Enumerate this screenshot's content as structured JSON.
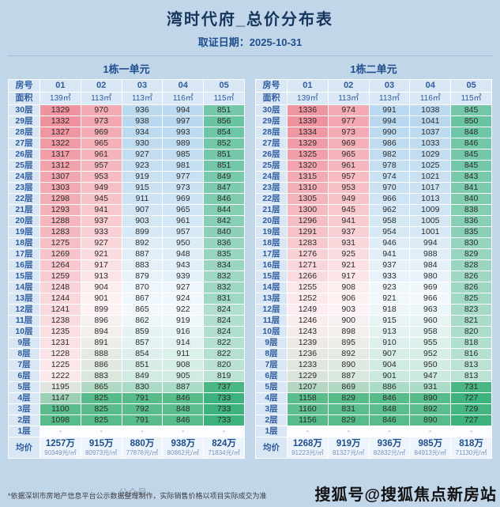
{
  "page": {
    "title": "湾时代府_总价分布表",
    "subtitle": "取证日期：2025-10-31",
    "footnote": "*依据深圳市房地产信息平台公示数据整理制作，实际销售价格以项目实际成交为准",
    "watermark": "搜狐号@搜狐焦点新房站",
    "watermark_left": "公众号"
  },
  "colors": {
    "page_bg": "#c2d6ea",
    "header_bg": "#d9e7f5",
    "header_text": "#2e5c9e",
    "title_text": "#17365d",
    "avg_value_text": "#1d4e89",
    "grid": "#ffffff",
    "column_palettes": [
      {
        "max": "#ef929d",
        "mid": "#fceef0",
        "min": "#57bb8a"
      },
      {
        "max": "#f3a7b0",
        "mid": "#fdf3f4",
        "min": "#57bb8a"
      },
      {
        "max": "#b9d8ef",
        "mid": "#f2f8fc",
        "min": "#57bb8a"
      },
      {
        "max": "#b9d8ef",
        "mid": "#f2f8fc",
        "min": "#57bb8a"
      },
      {
        "max": "#69c4a2",
        "mid": "#f1f7f4",
        "min": "#3eb27c"
      }
    ]
  },
  "chart_data": {
    "type": "table",
    "title": "湾时代府_总价分布表",
    "subtitle": "取证日期：2025-10-31",
    "empty_cell": "-",
    "tables": [
      {
        "caption": "1栋一单元",
        "corner_labels": [
          "房号",
          "面积"
        ],
        "columns": [
          "01",
          "02",
          "03",
          "04",
          "05"
        ],
        "areas": [
          "139㎡",
          "113㎡",
          "113㎡",
          "116㎡",
          "115㎡"
        ],
        "floors": [
          "30层",
          "29层",
          "28层",
          "27层",
          "26层",
          "25层",
          "24层",
          "23层",
          "22层",
          "21层",
          "20层",
          "19层",
          "18层",
          "17层",
          "16层",
          "15层",
          "14层",
          "13层",
          "12层",
          "11层",
          "10层",
          "9层",
          "8层",
          "7层",
          "6层",
          "5层",
          "4层",
          "3层",
          "2层",
          "1层"
        ],
        "values": [
          [
            1329,
            970,
            936,
            994,
            851
          ],
          [
            1332,
            973,
            938,
            997,
            856
          ],
          [
            1327,
            969,
            934,
            993,
            854
          ],
          [
            1322,
            965,
            930,
            989,
            852
          ],
          [
            1317,
            961,
            927,
            985,
            851
          ],
          [
            1312,
            957,
            923,
            981,
            851
          ],
          [
            1307,
            953,
            919,
            977,
            849
          ],
          [
            1303,
            949,
            915,
            973,
            847
          ],
          [
            1298,
            945,
            911,
            969,
            846
          ],
          [
            1293,
            941,
            907,
            965,
            844
          ],
          [
            1288,
            937,
            903,
            961,
            842
          ],
          [
            1283,
            933,
            899,
            957,
            840
          ],
          [
            1275,
            927,
            892,
            950,
            836
          ],
          [
            1269,
            921,
            887,
            948,
            835
          ],
          [
            1264,
            917,
            883,
            943,
            834
          ],
          [
            1259,
            913,
            879,
            939,
            832
          ],
          [
            1248,
            904,
            870,
            927,
            832
          ],
          [
            1244,
            901,
            867,
            924,
            831
          ],
          [
            1241,
            899,
            865,
            922,
            824
          ],
          [
            1238,
            896,
            862,
            919,
            824
          ],
          [
            1235,
            894,
            859,
            916,
            824
          ],
          [
            1231,
            891,
            857,
            914,
            822
          ],
          [
            1228,
            888,
            854,
            911,
            822
          ],
          [
            1225,
            886,
            851,
            908,
            820
          ],
          [
            1222,
            883,
            849,
            905,
            819
          ],
          [
            1195,
            865,
            830,
            887,
            737
          ],
          [
            1147,
            825,
            791,
            846,
            733
          ],
          [
            1100,
            825,
            792,
            848,
            733
          ],
          [
            1098,
            825,
            791,
            846,
            733
          ],
          [
            null,
            null,
            null,
            null,
            null
          ]
        ],
        "avg_label": "均价",
        "avg_values": [
          "1257万",
          "915万",
          "880万",
          "938万",
          "824万"
        ],
        "avg_sub": [
          "90349元/㎡",
          "80973元/㎡",
          "77876元/㎡",
          "80862元/㎡",
          "71834元/㎡"
        ]
      },
      {
        "caption": "1栋二单元",
        "corner_labels": [
          "房号",
          "面积"
        ],
        "columns": [
          "01",
          "02",
          "03",
          "04",
          "05"
        ],
        "areas": [
          "139㎡",
          "113㎡",
          "113㎡",
          "116㎡",
          "115㎡"
        ],
        "floors": [
          "30层",
          "29层",
          "28层",
          "27层",
          "26层",
          "25层",
          "24层",
          "23层",
          "22层",
          "21层",
          "20层",
          "19层",
          "18层",
          "17层",
          "16层",
          "15层",
          "14层",
          "13层",
          "12层",
          "11层",
          "10层",
          "9层",
          "8层",
          "7层",
          "6层",
          "5层",
          "4层",
          "3层",
          "2层",
          "1层"
        ],
        "values": [
          [
            1336,
            974,
            991,
            1038,
            845
          ],
          [
            1339,
            977,
            994,
            1041,
            850
          ],
          [
            1334,
            973,
            990,
            1037,
            848
          ],
          [
            1329,
            969,
            986,
            1033,
            846
          ],
          [
            1325,
            965,
            982,
            1029,
            845
          ],
          [
            1320,
            961,
            978,
            1025,
            845
          ],
          [
            1315,
            957,
            974,
            1021,
            843
          ],
          [
            1310,
            953,
            970,
            1017,
            841
          ],
          [
            1305,
            949,
            966,
            1013,
            840
          ],
          [
            1300,
            945,
            962,
            1009,
            838
          ],
          [
            1296,
            941,
            958,
            1005,
            836
          ],
          [
            1291,
            937,
            954,
            1001,
            835
          ],
          [
            1283,
            931,
            946,
            994,
            830
          ],
          [
            1276,
            925,
            941,
            988,
            829
          ],
          [
            1271,
            921,
            937,
            984,
            828
          ],
          [
            1266,
            917,
            933,
            980,
            826
          ],
          [
            1255,
            908,
            923,
            969,
            826
          ],
          [
            1252,
            906,
            921,
            966,
            825
          ],
          [
            1249,
            903,
            918,
            963,
            823
          ],
          [
            1246,
            900,
            915,
            960,
            821
          ],
          [
            1243,
            898,
            913,
            958,
            820
          ],
          [
            1239,
            895,
            910,
            955,
            818
          ],
          [
            1236,
            892,
            907,
            952,
            816
          ],
          [
            1233,
            890,
            904,
            950,
            813
          ],
          [
            1229,
            887,
            901,
            947,
            813
          ],
          [
            1207,
            869,
            886,
            931,
            731
          ],
          [
            1158,
            829,
            846,
            890,
            727
          ],
          [
            1160,
            831,
            848,
            892,
            729
          ],
          [
            1156,
            829,
            846,
            890,
            727
          ],
          [
            null,
            null,
            null,
            null,
            null
          ]
        ],
        "avg_label": "均价",
        "avg_values": [
          "1268万",
          "919万",
          "936万",
          "985万",
          "818万"
        ],
        "avg_sub": [
          "91223元/㎡",
          "81327元/㎡",
          "82832元/㎡",
          "84913元/㎡",
          "71130元/㎡"
        ]
      }
    ]
  }
}
